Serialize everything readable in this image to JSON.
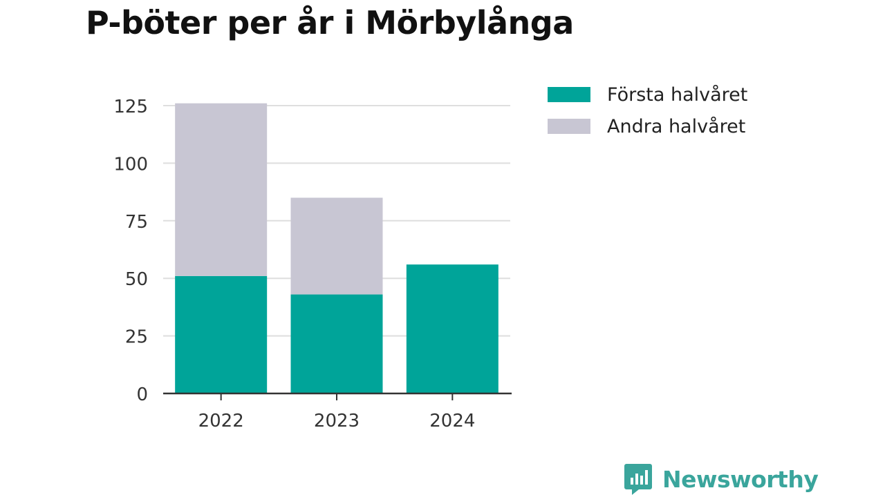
{
  "title": "P-böter per år i Mörbylånga",
  "brand": {
    "name": "Newsworthy",
    "color": "#3aa59c",
    "icon": "bar-chart-speech-bubble-icon"
  },
  "chart_data": {
    "type": "bar",
    "stacked": true,
    "categories": [
      "2022",
      "2023",
      "2024"
    ],
    "series": [
      {
        "name": "Första halvåret",
        "color": "#00a499",
        "values": [
          51,
          43,
          56
        ]
      },
      {
        "name": "Andra halvåret",
        "color": "#c8c6d3",
        "values": [
          75,
          42,
          0
        ]
      }
    ],
    "yticks": [
      0,
      25,
      50,
      75,
      100,
      125
    ],
    "ylim": [
      0,
      126
    ],
    "grid": true,
    "legend_position": "right"
  }
}
